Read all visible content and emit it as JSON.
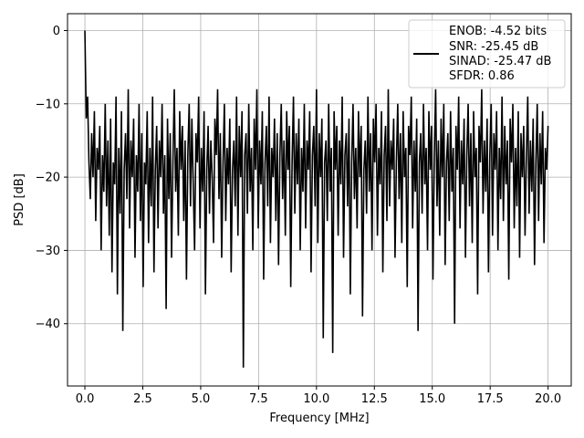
{
  "chart_data": {
    "type": "line",
    "title": "",
    "xlabel": "Frequency [MHz]",
    "ylabel": "PSD [dB]",
    "xlim": [
      -0.75,
      21.0
    ],
    "ylim": [
      -48.5,
      2.3
    ],
    "x_ticks": [
      0.0,
      2.5,
      5.0,
      7.5,
      10.0,
      12.5,
      15.0,
      17.5,
      20.0
    ],
    "x_tick_labels": [
      "0.0",
      "2.5",
      "5.0",
      "7.5",
      "10.0",
      "12.5",
      "15.0",
      "17.5",
      "20.0"
    ],
    "y_ticks": [
      0,
      -10,
      -20,
      -30,
      -40
    ],
    "y_tick_labels": [
      "0",
      "−10",
      "−20",
      "−30",
      "−40"
    ],
    "grid": true,
    "legend_placement": "top-right",
    "legend": [
      "ENOB: -4.52 bits",
      "SNR: -25.45 dB",
      "SINAD: -25.47 dB",
      "SFDR: 0.86"
    ],
    "series": [
      {
        "color": "#000000",
        "x_start": 0.0,
        "x_end": 20.0,
        "values": [
          0.0,
          -12,
          -9,
          -18,
          -23,
          -14,
          -20,
          -11,
          -26,
          -16,
          -19,
          -13,
          -30,
          -17,
          -22,
          -10,
          -24,
          -15,
          -28,
          -12,
          -33,
          -18,
          -21,
          -9,
          -36,
          -16,
          -25,
          -11,
          -41,
          -19,
          -14,
          -23,
          -8,
          -27,
          -15,
          -20,
          -12,
          -31,
          -17,
          -22,
          -10,
          -26,
          -14,
          -35,
          -18,
          -21,
          -11,
          -29,
          -16,
          -24,
          -9,
          -33,
          -19,
          -13,
          -27,
          -15,
          -20,
          -10,
          -25,
          -17,
          -38,
          -12,
          -23,
          -14,
          -31,
          -18,
          -8,
          -22,
          -16,
          -28,
          -11,
          -19,
          -13,
          -26,
          -15,
          -34,
          -17,
          -10,
          -24,
          -12,
          -21,
          -30,
          -14,
          -18,
          -9,
          -27,
          -16,
          -22,
          -11,
          -36,
          -19,
          -13,
          -25,
          -15,
          -20,
          -29,
          -12,
          -17,
          -8,
          -23,
          -14,
          -31,
          -18,
          -10,
          -26,
          -16,
          -21,
          -12,
          -33,
          -19,
          -15,
          -24,
          -9,
          -28,
          -13,
          -20,
          -11,
          -46,
          -17,
          -14,
          -25,
          -10,
          -22,
          -16,
          -30,
          -12,
          -19,
          -8,
          -27,
          -15,
          -21,
          -11,
          -34,
          -18,
          -13,
          -24,
          -9,
          -29,
          -16,
          -20,
          -12,
          -26,
          -14,
          -32,
          -17,
          -10,
          -23,
          -15,
          -28,
          -11,
          -19,
          -13,
          -35,
          -18,
          -9,
          -25,
          -14,
          -21,
          -12,
          -30,
          -16,
          -22,
          -10,
          -27,
          -15,
          -19,
          -11,
          -33,
          -17,
          -13,
          -24,
          -8,
          -29,
          -14,
          -20,
          -12,
          -42,
          -18,
          -15,
          -26,
          -10,
          -22,
          -16,
          -44,
          -11,
          -19,
          -13,
          -28,
          -15,
          -21,
          -9,
          -31,
          -17,
          -14,
          -24,
          -12,
          -36,
          -18,
          -10,
          -23,
          -16,
          -27,
          -11,
          -20,
          -13,
          -39,
          -19,
          -15,
          -25,
          -9,
          -22,
          -14,
          -30,
          -12,
          -18,
          -10,
          -28,
          -16,
          -21,
          -11,
          -33,
          -17,
          -13,
          -26,
          -8,
          -24,
          -15,
          -19,
          -12,
          -31,
          -18,
          -10,
          -23,
          -14,
          -29,
          -11,
          -20,
          -16,
          -35,
          -13,
          -17,
          -9,
          -27,
          -15,
          -22,
          -12,
          -41,
          -18,
          -14,
          -25,
          -10,
          -21,
          -16,
          -30,
          -11,
          -19,
          -13,
          -34,
          -17,
          -8,
          -24,
          -15,
          -28,
          -12,
          -20,
          -10,
          -32,
          -18,
          -14,
          -26,
          -11,
          -22,
          -16,
          -40,
          -13,
          -19,
          -9,
          -27,
          -15,
          -21,
          -12,
          -31,
          -17,
          -10,
          -24,
          -14,
          -29,
          -11,
          -20,
          -16,
          -36,
          -13,
          -18,
          -8,
          -25,
          -15,
          -22,
          -12,
          -33,
          -17,
          -10,
          -28,
          -14,
          -19,
          -11,
          -30,
          -16,
          -23,
          -9,
          -26,
          -13,
          -21,
          -15,
          -34,
          -12,
          -18,
          -10,
          -27,
          -16,
          -24,
          -11,
          -31,
          -14,
          -20,
          -13,
          -28,
          -17,
          -9,
          -25,
          -15,
          -22,
          -12,
          -32,
          -18,
          -10,
          -26,
          -14,
          -21,
          -11,
          -29,
          -16,
          -19,
          -13
        ]
      }
    ]
  }
}
